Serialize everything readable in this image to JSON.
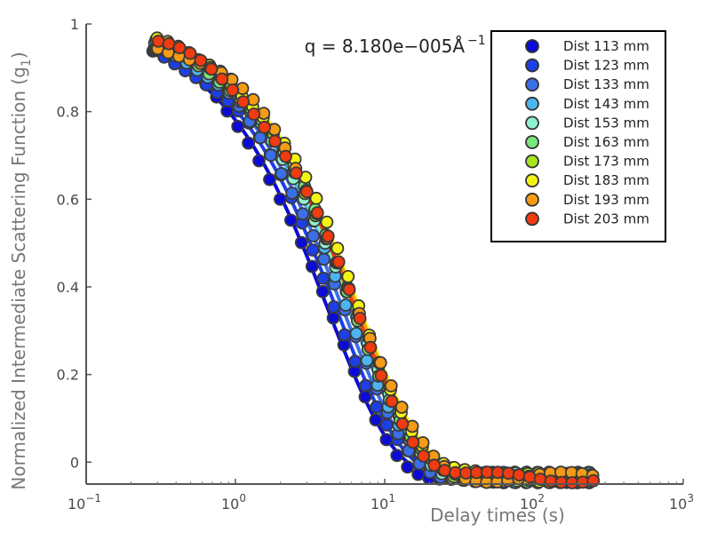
{
  "chart_data": {
    "type": "scatter",
    "title": "",
    "xlabel": "Delay times (s)",
    "ylabel": "Normalized Intermediate Scattering Function (g",
    "ylabel_sub": "1",
    "ylabel_close": ")",
    "xscale": "log",
    "xlim": [
      0.1,
      1000
    ],
    "ylim": [
      -0.05,
      1.0
    ],
    "x_ticks": [
      {
        "value": 0.1,
        "base": "10",
        "exp": "−1"
      },
      {
        "value": 1,
        "base": "10",
        "exp": "0"
      },
      {
        "value": 10,
        "base": "10",
        "exp": "1"
      },
      {
        "value": 100,
        "base": "10",
        "exp": "2"
      },
      {
        "value": 1000,
        "base": "10",
        "exp": "3"
      }
    ],
    "y_ticks": [
      {
        "value": 0,
        "label": "0"
      },
      {
        "value": 0.2,
        "label": "0.2"
      },
      {
        "value": 0.4,
        "label": "0.4"
      },
      {
        "value": 0.6,
        "label": "0.6"
      },
      {
        "value": 0.8,
        "label": "0.8"
      },
      {
        "value": 1.0,
        "label": "1"
      }
    ],
    "annotation": {
      "text": "q = 8.180e−005Å",
      "superscript": "−1",
      "x": 2.9,
      "y": 0.935
    },
    "legend_position": "top-right",
    "x_min_data": 0.28,
    "x_max_data": 230,
    "points_per_series": 42,
    "fit": {
      "baseline": -0.035,
      "amplitude": 1.0,
      "beta": 1.0
    },
    "series": [
      {
        "name": "Dist 113 mm",
        "color": "#0b0bd8",
        "tau": 4.2
      },
      {
        "name": "Dist 123 mm",
        "color": "#1c3fe6",
        "tau": 4.8
      },
      {
        "name": "Dist 133 mm",
        "color": "#3a6fe8",
        "tau": 5.3
      },
      {
        "name": "Dist 143 mm",
        "color": "#4cb4ef",
        "tau": 5.8
      },
      {
        "name": "Dist 153 mm",
        "color": "#8ff2ce",
        "tau": 6.1
      },
      {
        "name": "Dist 163 mm",
        "color": "#7ae67a",
        "tau": 6.3
      },
      {
        "name": "Dist 173 mm",
        "color": "#a6e41e",
        "tau": 6.5
      },
      {
        "name": "Dist 183 mm",
        "color": "#f4f413",
        "tau": 6.9
      },
      {
        "name": "Dist 193 mm",
        "color": "#f59b14",
        "tau": 6.7
      },
      {
        "name": "Dist 203 mm",
        "color": "#f03a0f",
        "tau": 6.4
      }
    ]
  }
}
